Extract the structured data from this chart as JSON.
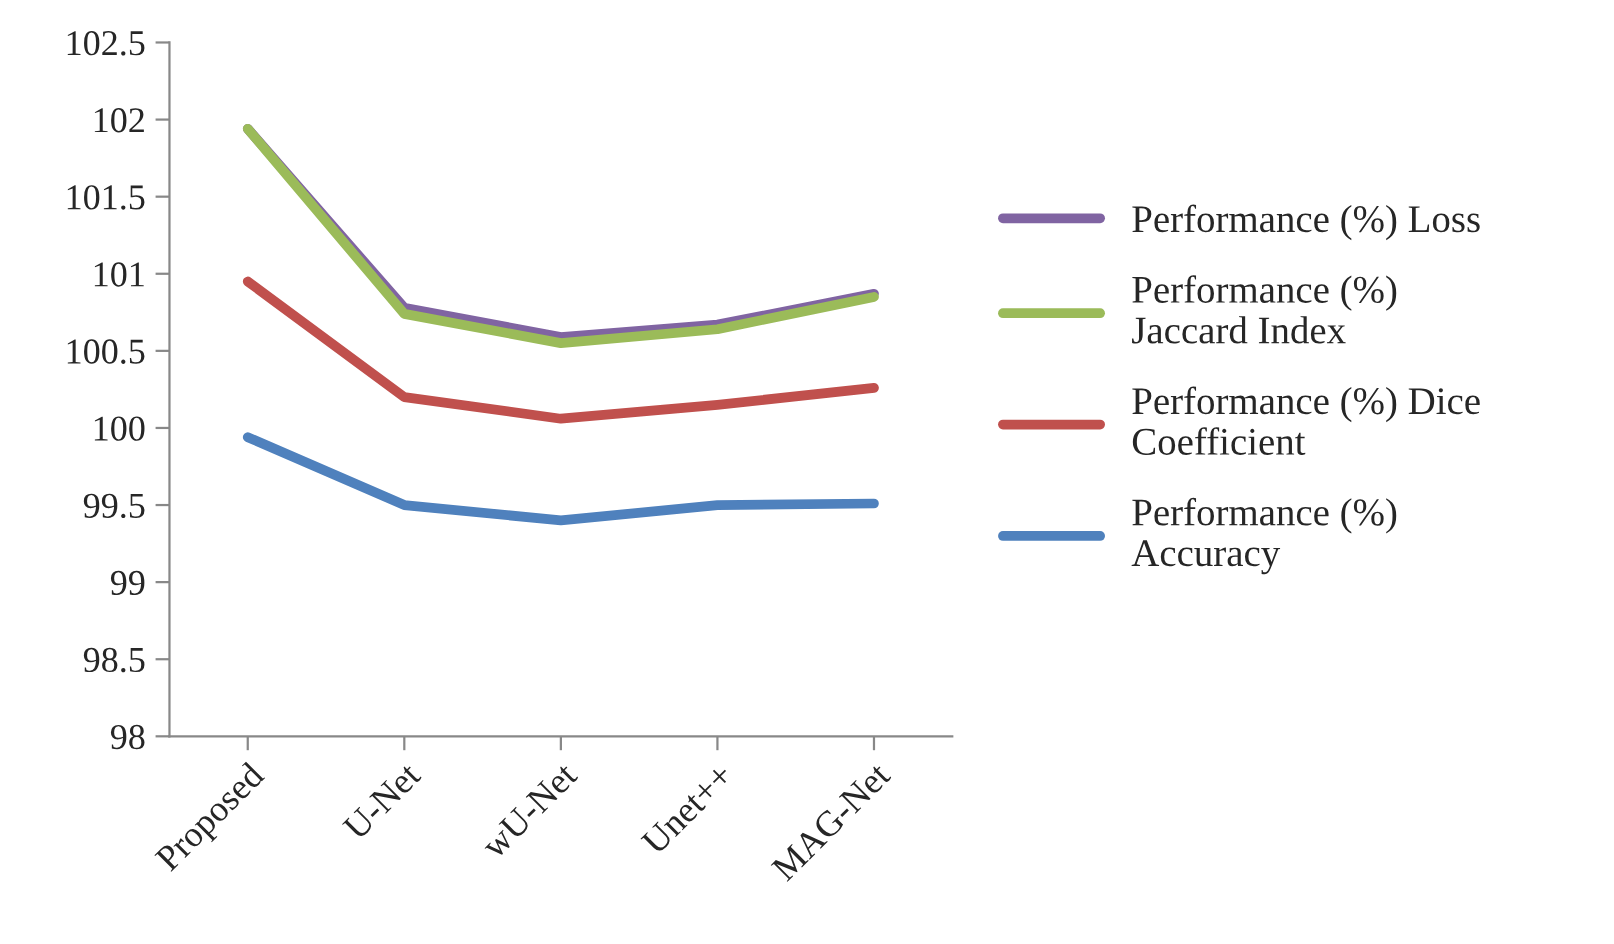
{
  "chart_data": {
    "type": "line",
    "categories": [
      "Proposed",
      "U-Net",
      "wU-Net",
      "Unet++",
      "MAG-Net"
    ],
    "series": [
      {
        "name": "Performance (%) Loss",
        "color": "#8064a2",
        "values": [
          101.94,
          100.78,
          100.59,
          100.67,
          100.87
        ]
      },
      {
        "name": "Performance (%)\nJaccard Index",
        "color": "#9bbb59",
        "values": [
          101.94,
          100.74,
          100.55,
          100.64,
          100.85
        ]
      },
      {
        "name": "Performance (%) Dice\nCoefficient",
        "color": "#c0504d",
        "values": [
          100.95,
          100.2,
          100.06,
          100.15,
          100.26
        ]
      },
      {
        "name": "Performance (%)\nAccuracy",
        "color": "#4f81bd",
        "values": [
          99.94,
          99.5,
          99.4,
          99.5,
          99.51
        ]
      }
    ],
    "ylim": [
      98,
      102.5
    ],
    "yticks": [
      98,
      98.5,
      99,
      99.5,
      100,
      100.5,
      101,
      101.5,
      102,
      102.5
    ],
    "grid": false,
    "legend": "right",
    "marker": "none",
    "line_style": "solid"
  }
}
